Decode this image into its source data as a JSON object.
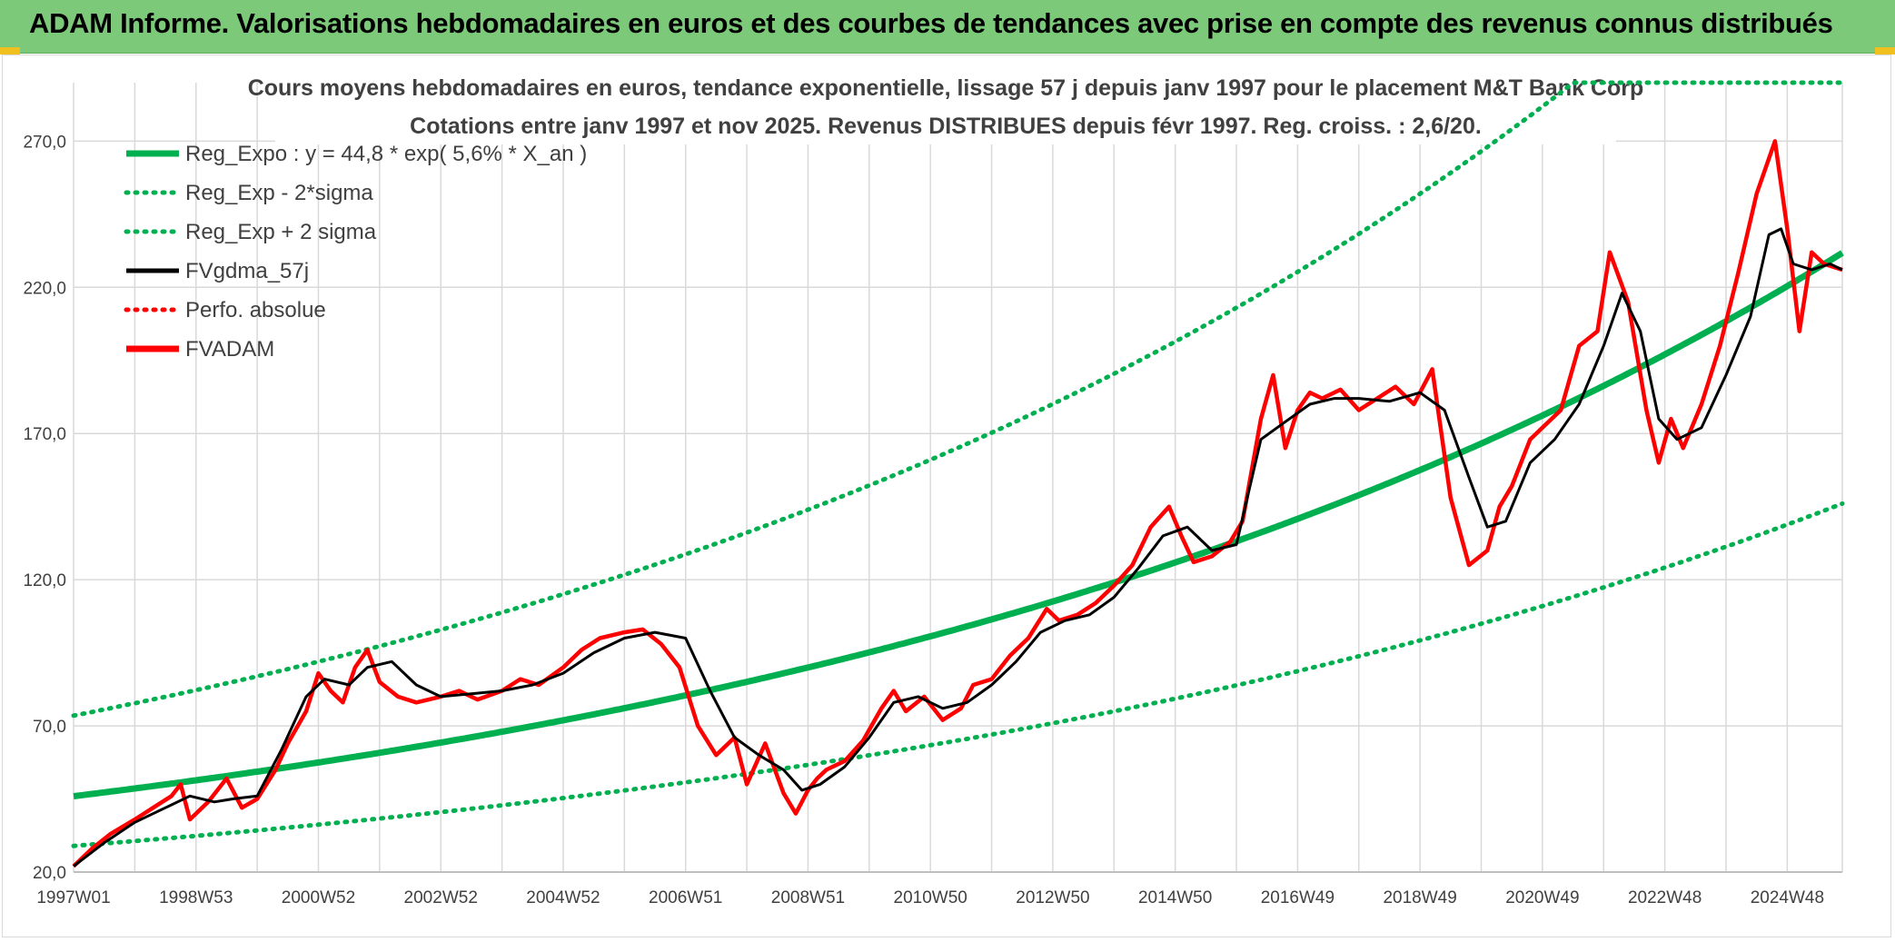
{
  "header": {
    "title": "ADAM Informe. Valorisations hebdomadaires en euros et des courbes de tendances avec prise en compte des revenus connus distribués"
  },
  "colors": {
    "header_bg": "#7dc97a",
    "trend_green": "#00b050",
    "price_red": "#ff0000",
    "smooth_black": "#000000",
    "grid": "#d9d9d9",
    "axis_text": "#404040"
  },
  "chart_data": {
    "type": "line",
    "title": "Cours moyens hebdomadaires en euros, tendance exponentielle, lissage 57 j depuis janv 1997 pour le placement M&T Bank Corp",
    "subtitle": "Cotations entre janv 1997 et nov 2025. Revenus DISTRIBUES depuis févr 1997. Reg. croiss. : 2,6/20.",
    "xlabel": "",
    "ylabel": "",
    "x_range_years": [
      1997.0,
      2025.9
    ],
    "ylim": [
      20,
      290
    ],
    "y_ticks": [
      "20,0",
      "70,0",
      "120,0",
      "170,0",
      "220,0",
      "270,0"
    ],
    "y_tick_values": [
      20,
      70,
      120,
      170,
      220,
      270
    ],
    "x_tick_labels": [
      "1997W01",
      "1998W53",
      "2000W52",
      "2002W52",
      "2004W52",
      "2006W51",
      "2008W51",
      "2010W50",
      "2012W50",
      "2014W50",
      "2016W49",
      "2018W49",
      "2020W49",
      "2022W48",
      "2024W48"
    ],
    "x_tick_years": [
      1997.0,
      1999.0,
      2001.0,
      2003.0,
      2005.0,
      2007.0,
      2009.0,
      2011.0,
      2013.0,
      2015.0,
      2017.0,
      2019.0,
      2021.0,
      2023.0,
      2025.0
    ],
    "grid": true,
    "legend_position": "top-left",
    "legend": [
      {
        "label": "Reg_Expo : y = 44,8 * exp( 5,6% *  X_an )",
        "color": "#00b050",
        "style": "solid-thick"
      },
      {
        "label": "Reg_Exp - 2*sigma",
        "color": "#00b050",
        "style": "dotted"
      },
      {
        "label": "Reg_Exp + 2 sigma",
        "color": "#00b050",
        "style": "dotted"
      },
      {
        "label": "FVgdma_57j",
        "color": "#000000",
        "style": "solid"
      },
      {
        "label": "Perfo. absolue",
        "color": "#ff0000",
        "style": "dotted"
      },
      {
        "label": "FVADAM",
        "color": "#ff0000",
        "style": "solid-thick"
      }
    ],
    "regression": {
      "a": 44.8,
      "rate": 0.056,
      "lower_factor": 0.63,
      "upper_factor": 1.6,
      "upper_cap": 290
    },
    "series": [
      {
        "name": "FVADAM",
        "x": [
          1997.0,
          1997.3,
          1997.6,
          1998.0,
          1998.3,
          1998.6,
          1998.75,
          1998.9,
          1999.2,
          1999.5,
          1999.75,
          2000.0,
          2000.3,
          2000.5,
          2000.8,
          2001.0,
          2001.2,
          2001.4,
          2001.6,
          2001.8,
          2002.0,
          2002.3,
          2002.6,
          2003.0,
          2003.3,
          2003.6,
          2004.0,
          2004.3,
          2004.6,
          2005.0,
          2005.3,
          2005.6,
          2006.0,
          2006.3,
          2006.6,
          2006.9,
          2007.2,
          2007.5,
          2007.8,
          2008.0,
          2008.3,
          2008.6,
          2008.8,
          2009.0,
          2009.15,
          2009.3,
          2009.6,
          2009.9,
          2010.2,
          2010.4,
          2010.6,
          2010.9,
          2011.2,
          2011.5,
          2011.7,
          2012.0,
          2012.3,
          2012.6,
          2012.9,
          2013.1,
          2013.4,
          2013.7,
          2014.0,
          2014.3,
          2014.6,
          2014.9,
          2015.1,
          2015.3,
          2015.6,
          2015.9,
          2016.1,
          2016.4,
          2016.6,
          2016.8,
          2017.0,
          2017.2,
          2017.4,
          2017.7,
          2018.0,
          2018.3,
          2018.6,
          2018.9,
          2019.2,
          2019.5,
          2019.8,
          2020.1,
          2020.3,
          2020.5,
          2020.8,
          2021.0,
          2021.3,
          2021.6,
          2021.9,
          2022.1,
          2022.4,
          2022.7,
          2022.9,
          2023.1,
          2023.3,
          2023.6,
          2023.9,
          2024.2,
          2024.5,
          2024.8,
          2025.0,
          2025.2,
          2025.4,
          2025.6,
          2025.9
        ],
        "values": [
          22,
          28,
          33,
          38,
          42,
          46,
          50,
          38,
          44,
          52,
          42,
          45,
          55,
          64,
          75,
          88,
          82,
          78,
          90,
          96,
          85,
          80,
          78,
          80,
          82,
          79,
          82,
          86,
          84,
          90,
          96,
          100,
          102,
          103,
          98,
          90,
          70,
          60,
          66,
          50,
          64,
          47,
          40,
          48,
          52,
          55,
          58,
          65,
          76,
          82,
          75,
          80,
          72,
          76,
          84,
          86,
          94,
          100,
          110,
          106,
          108,
          112,
          118,
          125,
          138,
          145,
          135,
          126,
          128,
          133,
          140,
          175,
          190,
          165,
          178,
          184,
          182,
          185,
          178,
          182,
          186,
          180,
          192,
          148,
          125,
          130,
          145,
          152,
          168,
          172,
          178,
          200,
          205,
          232,
          215,
          178,
          160,
          175,
          165,
          180,
          200,
          225,
          252,
          270,
          240,
          205,
          232,
          228,
          226
        ],
        "color": "#ff0000"
      },
      {
        "name": "FVgdma_57j",
        "x": [
          1997.0,
          1997.5,
          1998.0,
          1998.5,
          1998.9,
          1999.3,
          1999.6,
          2000.0,
          2000.4,
          2000.8,
          2001.1,
          2001.5,
          2001.8,
          2002.2,
          2002.6,
          2003.0,
          2003.5,
          2004.0,
          2004.5,
          2005.0,
          2005.5,
          2006.0,
          2006.5,
          2007.0,
          2007.4,
          2007.8,
          2008.2,
          2008.6,
          2008.9,
          2009.2,
          2009.6,
          2010.0,
          2010.4,
          2010.8,
          2011.2,
          2011.6,
          2012.0,
          2012.4,
          2012.8,
          2013.2,
          2013.6,
          2014.0,
          2014.4,
          2014.8,
          2015.2,
          2015.6,
          2016.0,
          2016.4,
          2016.8,
          2017.2,
          2017.6,
          2018.0,
          2018.5,
          2019.0,
          2019.4,
          2019.8,
          2020.1,
          2020.4,
          2020.8,
          2021.2,
          2021.6,
          2022.0,
          2022.3,
          2022.6,
          2022.9,
          2023.2,
          2023.6,
          2024.0,
          2024.4,
          2024.7,
          2024.9,
          2025.1,
          2025.4,
          2025.7,
          2025.9
        ],
        "values": [
          22,
          30,
          37,
          42,
          46,
          44,
          45,
          46,
          62,
          80,
          86,
          84,
          90,
          92,
          84,
          80,
          81,
          82,
          84,
          88,
          95,
          100,
          102,
          100,
          82,
          66,
          60,
          55,
          48,
          50,
          56,
          66,
          78,
          80,
          76,
          78,
          84,
          92,
          102,
          106,
          108,
          114,
          124,
          135,
          138,
          130,
          132,
          168,
          174,
          180,
          182,
          182,
          181,
          184,
          178,
          155,
          138,
          140,
          160,
          168,
          180,
          200,
          218,
          205,
          175,
          168,
          172,
          190,
          210,
          238,
          240,
          228,
          226,
          228,
          226
        ],
        "color": "#000000"
      }
    ]
  }
}
